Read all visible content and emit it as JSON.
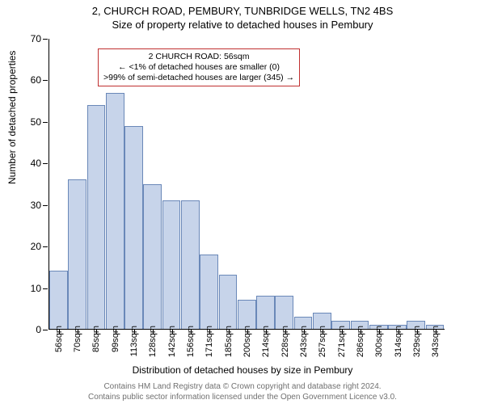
{
  "titles": {
    "line1": "2, CHURCH ROAD, PEMBURY, TUNBRIDGE WELLS, TN2 4BS",
    "line2": "Size of property relative to detached houses in Pembury"
  },
  "axes": {
    "ylabel": "Number of detached properties",
    "xlabel": "Distribution of detached houses by size in Pembury",
    "ylim": [
      0,
      70
    ],
    "ytick_step": 10,
    "yticks": [
      0,
      10,
      20,
      30,
      40,
      50,
      60,
      70
    ]
  },
  "chart": {
    "type": "histogram",
    "bar_fill": "#c7d4ea",
    "bar_stroke": "#6a88b8",
    "categories": [
      "56sqm",
      "70sqm",
      "85sqm",
      "99sqm",
      "113sqm",
      "128sqm",
      "142sqm",
      "156sqm",
      "171sqm",
      "185sqm",
      "200sqm",
      "214sqm",
      "228sqm",
      "243sqm",
      "257sqm",
      "271sqm",
      "286sqm",
      "300sqm",
      "314sqm",
      "329sqm",
      "343sqm"
    ],
    "values": [
      14,
      36,
      54,
      57,
      49,
      35,
      31,
      31,
      18,
      13,
      7,
      8,
      8,
      3,
      4,
      2,
      2,
      1,
      1,
      2,
      1
    ]
  },
  "annotation": {
    "lines": [
      "2 CHURCH ROAD: 56sqm",
      "← <1% of detached houses are smaller (0)",
      ">99% of semi-detached houses are larger (345) →"
    ],
    "border_color": "#c03030"
  },
  "footer": {
    "line1": "Contains HM Land Registry data © Crown copyright and database right 2024.",
    "line2": "Contains public sector information licensed under the Open Government Licence v3.0."
  },
  "styling": {
    "background": "#ffffff",
    "axis_color": "#000000",
    "title_fontsize": 13,
    "label_fontsize": 12,
    "tick_fontsize": 11,
    "footer_color": "#707070"
  }
}
